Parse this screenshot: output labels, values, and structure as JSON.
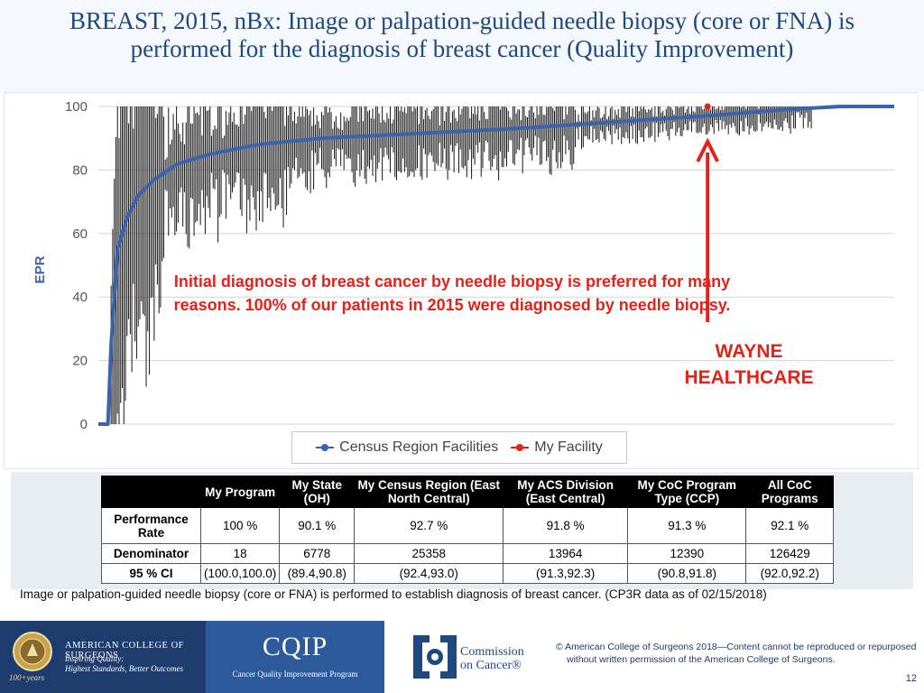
{
  "slide": {
    "title": "BREAST, 2015, nBx: Image or palpation-guided needle biopsy (core or FNA) is performed for the diagnosis of breast cancer (Quality Improvement)"
  },
  "annotation": {
    "text": "Initial diagnosis of breast cancer by needle biopsy is preferred for many reasons. 100% of our patients in 2015 were diagnosed by needle biopsy.",
    "facility_label_line1": "WAYNE",
    "facility_label_line2": "HEALTHCARE",
    "arrow_color": "#e2231a"
  },
  "chart_data": {
    "type": "line",
    "title": "",
    "xlabel": "",
    "ylabel": "EPR",
    "ylim": [
      0,
      100
    ],
    "yticks": [
      0,
      20,
      40,
      60,
      80,
      100
    ],
    "grid": true,
    "legend_position": "bottom",
    "facility_count": 500,
    "series": [
      {
        "name": "Census Region Facilities",
        "color": "#3b63ab",
        "curve_x": [
          0,
          6,
          8,
          12,
          18,
          25,
          35,
          50,
          70,
          100,
          140,
          200,
          260,
          320,
          380,
          430,
          465,
          475,
          500
        ],
        "curve_y": [
          0,
          0,
          25,
          55,
          65,
          72,
          77,
          82,
          85,
          88,
          90,
          91.5,
          93,
          95,
          97,
          99,
          100,
          100,
          100
        ],
        "ci_band": "95% CI error bars per facility"
      },
      {
        "name": "My Facility",
        "color": "#e2231a",
        "x": [
          382
        ],
        "y": [
          100
        ]
      }
    ]
  },
  "table": {
    "headers": [
      "",
      "My Program",
      "My State (OH)",
      "My Census Region (East North Central)",
      "My ACS Division (East Central)",
      "My CoC Program Type (CCP)",
      "All CoC Programs"
    ],
    "rows": [
      [
        "Performance Rate",
        "100 %",
        "90.1 %",
        "92.7 %",
        "91.8 %",
        "91.3 %",
        "92.1 %"
      ],
      [
        "Denominator",
        "18",
        "6778",
        "25358",
        "13964",
        "12390",
        "126429"
      ],
      [
        "95 % CI",
        "(100.0,100.0)",
        "(89.4,90.8)",
        "(92.4,93.0)",
        "(91.3,92.3)",
        "(90.8,91.8)",
        "(92.0,92.2)"
      ]
    ],
    "caption": "Image or palpation-guided needle biopsy (core or FNA) is performed to establish diagnosis of breast cancer. (CP3R data as of 02/15/2018)"
  },
  "footer": {
    "acs_name": "AMERICAN COLLEGE OF SURGEONS",
    "acs_tagline_1": "Inspiring Quality:",
    "acs_tagline_2": "Highest Standards, Better Outcomes",
    "acs_years": "100+years",
    "cqip_logo": "CQIP",
    "cqip_subtitle": "Cancer Quality Improvement Program",
    "coc_name_1": "Commission",
    "coc_name_2": "on Cancer®",
    "copyright_1": "© American College of Surgeons 2018—Content cannot be reproduced or repurposed",
    "copyright_2": "without written permission of the American College of Surgeons.",
    "page_number": "12"
  }
}
